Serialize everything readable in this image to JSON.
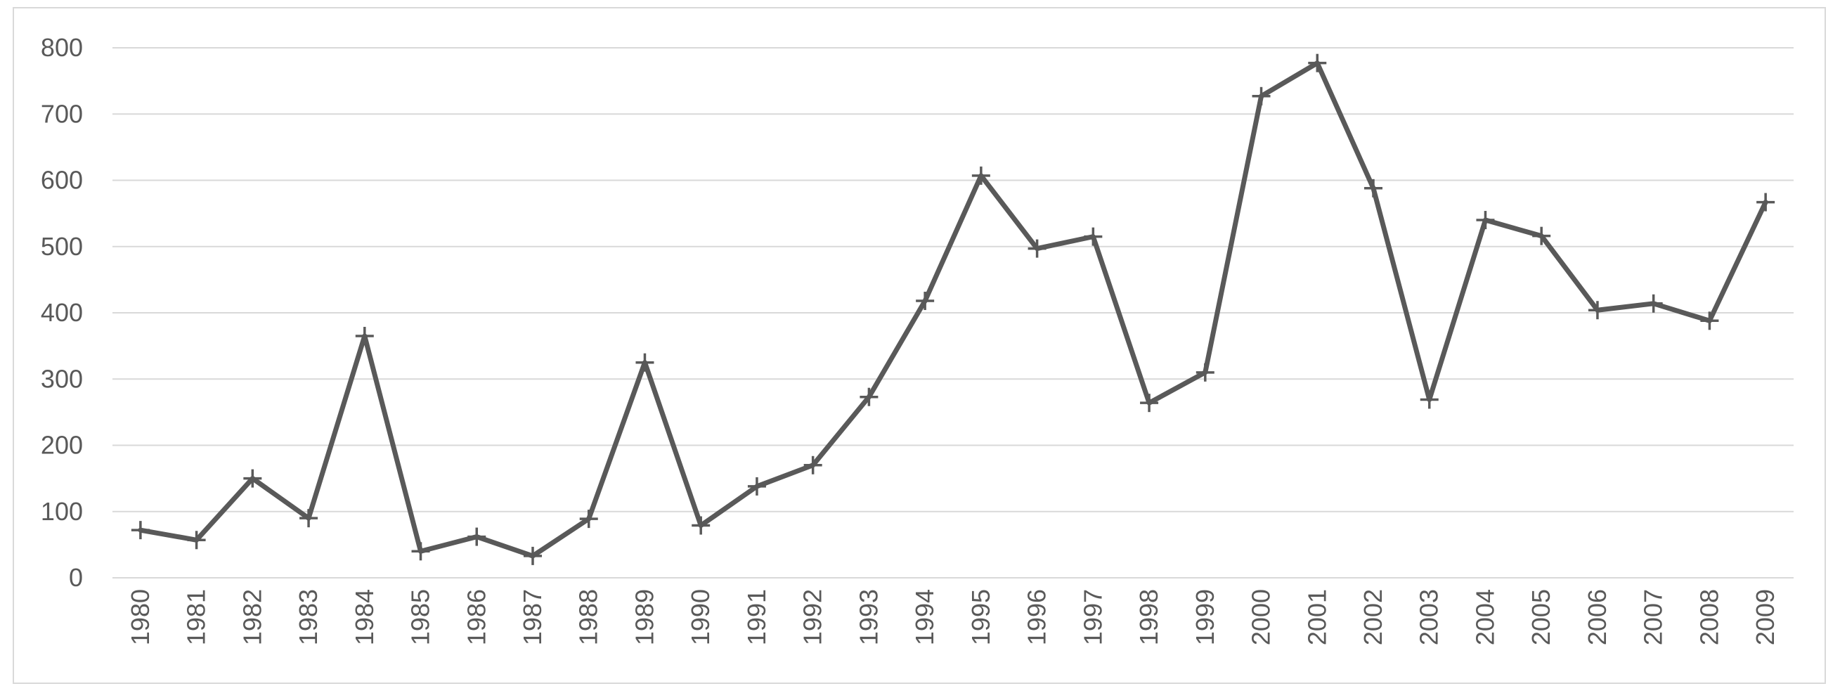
{
  "chart_data": {
    "type": "line",
    "title": "",
    "xlabel": "",
    "ylabel": "",
    "ylim": [
      0,
      800
    ],
    "y_ticks": [
      "0",
      "100",
      "200",
      "300",
      "400",
      "500",
      "600",
      "700",
      "800"
    ],
    "grid": "horizontal",
    "marker": "plus",
    "categories": [
      "1980",
      "1981",
      "1982",
      "1983",
      "1984",
      "1985",
      "1986",
      "1987",
      "1988",
      "1989",
      "1990",
      "1991",
      "1992",
      "1993",
      "1994",
      "1995",
      "1996",
      "1997",
      "1998",
      "1999",
      "2000",
      "2001",
      "2002",
      "2003",
      "2004",
      "2005",
      "2006",
      "2007",
      "2008",
      "2009"
    ],
    "series": [
      {
        "values": [
          72,
          57,
          150,
          90,
          365,
          40,
          62,
          33,
          89,
          325,
          79,
          138,
          170,
          273,
          418,
          607,
          497,
          515,
          264,
          310,
          727,
          777,
          588,
          269,
          540,
          516,
          404,
          414,
          388,
          567
        ],
        "color": "#595959"
      }
    ]
  }
}
